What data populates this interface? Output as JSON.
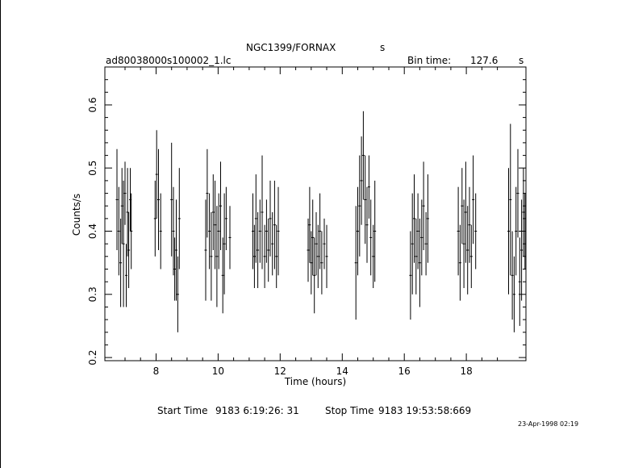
{
  "header": {
    "title": "NGC1399/FORNAX",
    "title_suffix": "s",
    "file_label": "ad80038000s100002_1.lc",
    "bin_time_label": "Bin time:",
    "bin_time_value": "127.6",
    "bin_time_unit": "s"
  },
  "footer": {
    "start_label": "Start Time",
    "start_value": "9183  6:19:26: 31",
    "stop_label": "Stop Time",
    "stop_value": "9183 19:53:58:669",
    "stamp": "23-Apr-1998 02:19"
  },
  "chart_data": {
    "type": "scatter",
    "title": "NGC1399/FORNAX",
    "xlabel": "Time (hours)",
    "ylabel": "Counts/s",
    "xlim": [
      6.35,
      19.92
    ],
    "ylim": [
      0.195,
      0.66
    ],
    "xticks": [
      8,
      10,
      12,
      14,
      16,
      18
    ],
    "yticks": [
      0.2,
      0.3,
      0.4,
      0.5,
      0.6
    ],
    "ytick_labels": [
      "0.2",
      "0.3",
      "0.4",
      "0.5",
      "0.6"
    ],
    "grid": false,
    "segments": [
      {
        "start": 6.72,
        "end": 7.22,
        "points": [
          [
            6.74,
            0.45,
            0.08
          ],
          [
            6.8,
            0.4,
            0.07
          ],
          [
            6.86,
            0.35,
            0.07
          ],
          [
            6.9,
            0.44,
            0.06
          ],
          [
            6.95,
            0.38,
            0.1
          ],
          [
            7.0,
            0.46,
            0.05
          ],
          [
            7.04,
            0.33,
            0.05
          ],
          [
            7.08,
            0.43,
            0.07
          ],
          [
            7.12,
            0.37,
            0.06
          ],
          [
            7.17,
            0.45,
            0.05
          ],
          [
            7.2,
            0.4,
            0.06
          ]
        ]
      },
      {
        "start": 7.95,
        "end": 8.78,
        "points": [
          [
            7.97,
            0.42,
            0.06
          ],
          [
            8.02,
            0.49,
            0.07
          ],
          [
            8.08,
            0.45,
            0.08
          ],
          [
            8.15,
            0.4,
            0.06
          ],
          [
            8.5,
            0.45,
            0.09
          ],
          [
            8.56,
            0.4,
            0.07
          ],
          [
            8.6,
            0.34,
            0.05
          ],
          [
            8.65,
            0.37,
            0.08
          ],
          [
            8.7,
            0.3,
            0.06
          ],
          [
            8.75,
            0.42,
            0.08
          ]
        ]
      },
      {
        "start": 9.58,
        "end": 10.4,
        "points": [
          [
            9.6,
            0.37,
            0.08
          ],
          [
            9.65,
            0.46,
            0.07
          ],
          [
            9.72,
            0.4,
            0.06
          ],
          [
            9.78,
            0.36,
            0.07
          ],
          [
            9.84,
            0.43,
            0.06
          ],
          [
            9.9,
            0.41,
            0.07
          ],
          [
            9.96,
            0.36,
            0.08
          ],
          [
            10.02,
            0.4,
            0.06
          ],
          [
            10.08,
            0.44,
            0.07
          ],
          [
            10.15,
            0.33,
            0.06
          ],
          [
            10.2,
            0.38,
            0.08
          ],
          [
            10.26,
            0.42,
            0.05
          ],
          [
            10.38,
            0.39,
            0.05
          ]
        ]
      },
      {
        "start": 11.1,
        "end": 11.98,
        "points": [
          [
            11.12,
            0.4,
            0.06
          ],
          [
            11.17,
            0.36,
            0.05
          ],
          [
            11.22,
            0.42,
            0.07
          ],
          [
            11.28,
            0.37,
            0.06
          ],
          [
            11.35,
            0.4,
            0.05
          ],
          [
            11.42,
            0.43,
            0.09
          ],
          [
            11.5,
            0.36,
            0.05
          ],
          [
            11.56,
            0.4,
            0.05
          ],
          [
            11.62,
            0.37,
            0.05
          ],
          [
            11.68,
            0.42,
            0.06
          ],
          [
            11.75,
            0.38,
            0.05
          ],
          [
            11.82,
            0.41,
            0.07
          ],
          [
            11.88,
            0.36,
            0.05
          ],
          [
            11.94,
            0.4,
            0.07
          ]
        ]
      },
      {
        "start": 12.88,
        "end": 13.52,
        "points": [
          [
            12.9,
            0.37,
            0.05
          ],
          [
            12.95,
            0.41,
            0.06
          ],
          [
            13.0,
            0.35,
            0.05
          ],
          [
            13.05,
            0.39,
            0.06
          ],
          [
            13.1,
            0.33,
            0.06
          ],
          [
            13.16,
            0.38,
            0.05
          ],
          [
            13.22,
            0.36,
            0.05
          ],
          [
            13.28,
            0.4,
            0.06
          ],
          [
            13.34,
            0.35,
            0.05
          ],
          [
            13.42,
            0.38,
            0.04
          ],
          [
            13.5,
            0.36,
            0.05
          ]
        ]
      },
      {
        "start": 14.42,
        "end": 15.08,
        "points": [
          [
            14.44,
            0.35,
            0.09
          ],
          [
            14.5,
            0.4,
            0.07
          ],
          [
            14.56,
            0.44,
            0.08
          ],
          [
            14.62,
            0.48,
            0.07
          ],
          [
            14.68,
            0.52,
            0.07
          ],
          [
            14.74,
            0.45,
            0.07
          ],
          [
            14.8,
            0.41,
            0.06
          ],
          [
            14.86,
            0.47,
            0.05
          ],
          [
            14.92,
            0.39,
            0.06
          ],
          [
            15.0,
            0.36,
            0.05
          ],
          [
            15.05,
            0.4,
            0.08
          ]
        ]
      },
      {
        "start": 16.18,
        "end": 16.78,
        "points": [
          [
            16.2,
            0.33,
            0.07
          ],
          [
            16.26,
            0.38,
            0.08
          ],
          [
            16.32,
            0.42,
            0.07
          ],
          [
            16.38,
            0.36,
            0.06
          ],
          [
            16.44,
            0.4,
            0.06
          ],
          [
            16.5,
            0.35,
            0.07
          ],
          [
            16.56,
            0.39,
            0.06
          ],
          [
            16.62,
            0.44,
            0.07
          ],
          [
            16.7,
            0.38,
            0.05
          ],
          [
            16.76,
            0.42,
            0.07
          ]
        ]
      },
      {
        "start": 17.72,
        "end": 18.32,
        "points": [
          [
            17.74,
            0.4,
            0.07
          ],
          [
            17.8,
            0.35,
            0.06
          ],
          [
            17.86,
            0.44,
            0.06
          ],
          [
            17.92,
            0.38,
            0.07
          ],
          [
            17.98,
            0.43,
            0.08
          ],
          [
            18.04,
            0.37,
            0.07
          ],
          [
            18.1,
            0.41,
            0.06
          ],
          [
            18.16,
            0.36,
            0.05
          ],
          [
            18.22,
            0.45,
            0.07
          ],
          [
            18.3,
            0.4,
            0.06
          ]
        ]
      },
      {
        "start": 19.35,
        "end": 19.9,
        "points": [
          [
            19.36,
            0.4,
            0.1
          ],
          [
            19.42,
            0.45,
            0.12
          ],
          [
            19.48,
            0.33,
            0.07
          ],
          [
            19.54,
            0.3,
            0.06
          ],
          [
            19.6,
            0.4,
            0.07
          ],
          [
            19.66,
            0.46,
            0.07
          ],
          [
            19.72,
            0.32,
            0.07
          ],
          [
            19.78,
            0.37,
            0.08
          ],
          [
            19.84,
            0.43,
            0.07
          ],
          [
            19.89,
            0.4,
            0.06
          ]
        ]
      }
    ]
  }
}
